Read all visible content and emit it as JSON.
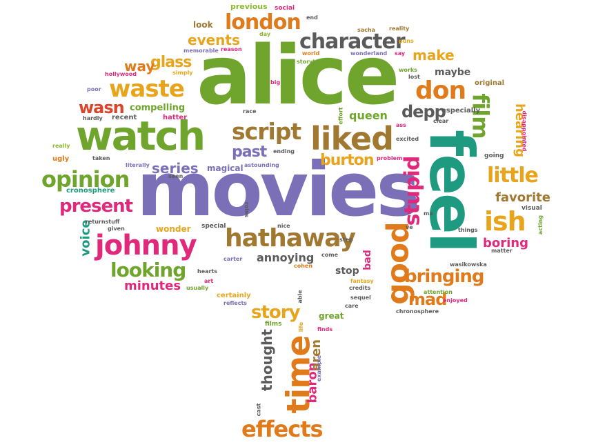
{
  "palette": {
    "green": "#6fa52c",
    "purple": "#7b6fb8",
    "orange": "#e07a1a",
    "pink": "#e0297b",
    "teal": "#1e9a80",
    "brown": "#a07830",
    "gold": "#e8a51c",
    "gray": "#5a5a5a",
    "red": "#d9462b",
    "lime": "#8bb82e"
  },
  "words": [
    {
      "text": "alice",
      "color": "green",
      "emphasis": "largest"
    },
    {
      "text": "movies",
      "color": "purple",
      "emphasis": "largest"
    },
    {
      "text": "feel",
      "color": "teal",
      "emphasis": "largest"
    },
    {
      "text": "watch",
      "color": "green"
    },
    {
      "text": "liked",
      "color": "brown"
    },
    {
      "text": "good",
      "color": "orange"
    },
    {
      "text": "time",
      "color": "orange"
    },
    {
      "text": "johnny",
      "color": "pink"
    },
    {
      "text": "hathaway",
      "color": "brown"
    },
    {
      "text": "script",
      "color": "brown"
    },
    {
      "text": "waste",
      "color": "gold"
    },
    {
      "text": "opinion",
      "color": "green"
    },
    {
      "text": "character",
      "color": "gray"
    },
    {
      "text": "london",
      "color": "orange"
    },
    {
      "text": "stupid",
      "color": "pink"
    },
    {
      "text": "don",
      "color": "orange"
    },
    {
      "text": "ish",
      "color": "gold"
    },
    {
      "text": "film",
      "color": "green"
    },
    {
      "text": "effects",
      "color": "orange"
    },
    {
      "text": "little",
      "color": "gold"
    },
    {
      "text": "present",
      "color": "pink"
    },
    {
      "text": "looking",
      "color": "green"
    },
    {
      "text": "bringing",
      "color": "orange"
    },
    {
      "text": "story",
      "color": "gold"
    },
    {
      "text": "mad",
      "color": "orange"
    },
    {
      "text": "depp",
      "color": "gray"
    },
    {
      "text": "burton",
      "color": "gold"
    },
    {
      "text": "past",
      "color": "purple"
    },
    {
      "text": "series",
      "color": "purple"
    },
    {
      "text": "wasn",
      "color": "red"
    },
    {
      "text": "events",
      "color": "gold"
    },
    {
      "text": "glass",
      "color": "gold"
    },
    {
      "text": "way",
      "color": "orange"
    },
    {
      "text": "make",
      "color": "gold"
    },
    {
      "text": "favorite",
      "color": "brown"
    },
    {
      "text": "hearing",
      "color": "gold"
    },
    {
      "text": "thought",
      "color": "gray"
    },
    {
      "text": "baron",
      "color": "pink"
    },
    {
      "text": "aren",
      "color": "brown"
    },
    {
      "text": "minutes",
      "color": "pink"
    },
    {
      "text": "boring",
      "color": "pink"
    },
    {
      "text": "annoying",
      "color": "gray"
    },
    {
      "text": "voice",
      "color": "teal"
    },
    {
      "text": "queen",
      "color": "green"
    },
    {
      "text": "compelling",
      "color": "green"
    },
    {
      "text": "maybe",
      "color": "gray"
    },
    {
      "text": "stop",
      "color": "gray"
    },
    {
      "text": "bad",
      "color": "pink"
    },
    {
      "text": "magical",
      "color": "purple"
    },
    {
      "text": "wonder",
      "color": "gold"
    },
    {
      "text": "look",
      "color": "brown"
    },
    {
      "text": "previous",
      "color": "lime"
    },
    {
      "text": "social",
      "color": "pink"
    },
    {
      "text": "end",
      "color": "gray"
    },
    {
      "text": "day",
      "color": "lime"
    },
    {
      "text": "sacha",
      "color": "brown"
    },
    {
      "text": "reality",
      "color": "brown"
    },
    {
      "text": "memorable",
      "color": "purple"
    },
    {
      "text": "reason",
      "color": "pink"
    },
    {
      "text": "world",
      "color": "orange"
    },
    {
      "text": "wonderland",
      "color": "purple"
    },
    {
      "text": "say",
      "color": "pink"
    },
    {
      "text": "puns",
      "color": "gold"
    },
    {
      "text": "storytelling",
      "color": "green"
    },
    {
      "text": "hollywood",
      "color": "pink"
    },
    {
      "text": "simply",
      "color": "gold"
    },
    {
      "text": "big",
      "color": "pink"
    },
    {
      "text": "works",
      "color": "green"
    },
    {
      "text": "lost",
      "color": "gray"
    },
    {
      "text": "poor",
      "color": "purple"
    },
    {
      "text": "original",
      "color": "brown"
    },
    {
      "text": "hardly",
      "color": "gray"
    },
    {
      "text": "recent",
      "color": "gray"
    },
    {
      "text": "hatter",
      "color": "pink"
    },
    {
      "text": "race",
      "color": "gray"
    },
    {
      "text": "effort",
      "color": "green"
    },
    {
      "text": "especially",
      "color": "gray"
    },
    {
      "text": "clear",
      "color": "gray"
    },
    {
      "text": "ass",
      "color": "pink"
    },
    {
      "text": "excited",
      "color": "gray"
    },
    {
      "text": "disappointed",
      "color": "pink"
    },
    {
      "text": "really",
      "color": "lime"
    },
    {
      "text": "taken",
      "color": "gray"
    },
    {
      "text": "ugly",
      "color": "orange"
    },
    {
      "text": "literally",
      "color": "purple"
    },
    {
      "text": "seen",
      "color": "gray"
    },
    {
      "text": "astounding",
      "color": "purple"
    },
    {
      "text": "ending",
      "color": "gray"
    },
    {
      "text": "problem",
      "color": "pink"
    },
    {
      "text": "going",
      "color": "gray"
    },
    {
      "text": "cronosphere",
      "color": "teal"
    },
    {
      "text": "returnstuff",
      "color": "gray"
    },
    {
      "text": "given",
      "color": "gray"
    },
    {
      "text": "special",
      "color": "gray"
    },
    {
      "text": "roles",
      "color": "gray"
    },
    {
      "text": "nice",
      "color": "gray"
    },
    {
      "text": "ve",
      "color": "gray"
    },
    {
      "text": "ma",
      "color": "gray"
    },
    {
      "text": "things",
      "color": "gray"
    },
    {
      "text": "visual",
      "color": "gray"
    },
    {
      "text": "acting",
      "color": "green"
    },
    {
      "text": "matter",
      "color": "gray"
    },
    {
      "text": "step",
      "color": "gray"
    },
    {
      "text": "come",
      "color": "gray"
    },
    {
      "text": "cohen",
      "color": "orange"
    },
    {
      "text": "carter",
      "color": "purple"
    },
    {
      "text": "hearts",
      "color": "gray"
    },
    {
      "text": "art",
      "color": "pink"
    },
    {
      "text": "usually",
      "color": "green"
    },
    {
      "text": "certainly",
      "color": "gold"
    },
    {
      "text": "reflects",
      "color": "purple"
    },
    {
      "text": "able",
      "color": "gray"
    },
    {
      "text": "fantasy",
      "color": "gold"
    },
    {
      "text": "credits",
      "color": "gray"
    },
    {
      "text": "sequel",
      "color": "gray"
    },
    {
      "text": "care",
      "color": "gray"
    },
    {
      "text": "attention",
      "color": "green"
    },
    {
      "text": "enjoyed",
      "color": "pink"
    },
    {
      "text": "chronosphere",
      "color": "gray"
    },
    {
      "text": "wasikowska",
      "color": "gray"
    },
    {
      "text": "great",
      "color": "green"
    },
    {
      "text": "films",
      "color": "green"
    },
    {
      "text": "finds",
      "color": "pink"
    },
    {
      "text": "life",
      "color": "gold"
    },
    {
      "text": "example",
      "color": "purple"
    },
    {
      "text": "cast",
      "color": "gray"
    }
  ]
}
